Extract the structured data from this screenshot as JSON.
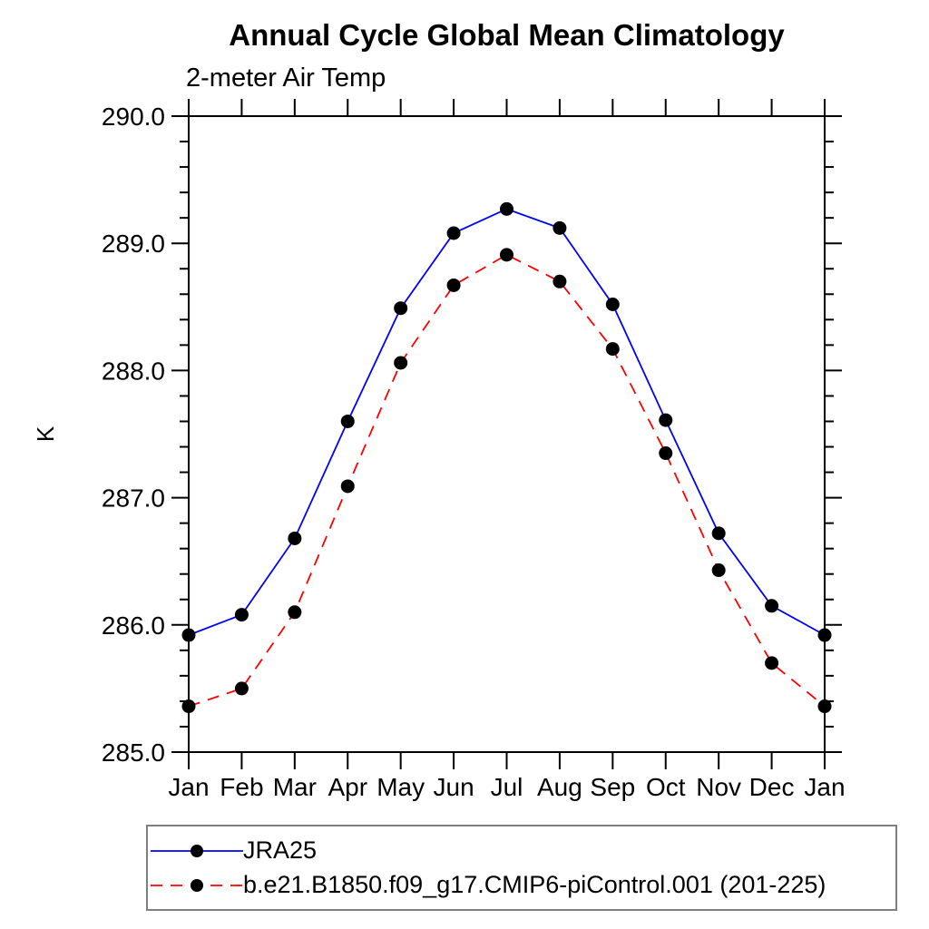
{
  "chart_data": {
    "type": "line",
    "title": "Annual Cycle Global Mean Climatology",
    "subtitle": "2-meter Air Temp",
    "ylabel": "K",
    "xlabel": "",
    "ylim": [
      285.0,
      290.0
    ],
    "ytick_interval": 1.0,
    "yminor_interval": 0.2,
    "ytick_labels": [
      "285.0",
      "286.0",
      "287.0",
      "288.0",
      "289.0",
      "290.0"
    ],
    "grid": false,
    "legend_position": "bottom-left",
    "categories": [
      "Jan",
      "Feb",
      "Mar",
      "Apr",
      "May",
      "Jun",
      "Jul",
      "Aug",
      "Sep",
      "Oct",
      "Nov",
      "Dec",
      "Jan"
    ],
    "marker": "filled-circle",
    "marker_color": "#000000",
    "axis_color": "#000000",
    "legend_border_color": "#7f7f7f",
    "series": [
      {
        "name": "JRA25",
        "color": "#0000ff",
        "style": "solid",
        "values": [
          285.92,
          286.08,
          286.68,
          287.6,
          288.49,
          289.08,
          289.27,
          289.12,
          288.52,
          287.61,
          286.72,
          286.15,
          285.92
        ]
      },
      {
        "name": "b.e21.B1850.f09_g17.CMIP6-piControl.001 (201-225)",
        "color": "#ff0000",
        "style": "dashed",
        "values": [
          285.36,
          285.5,
          286.1,
          287.09,
          288.06,
          288.67,
          288.91,
          288.7,
          288.17,
          287.35,
          286.43,
          285.7,
          285.36
        ]
      }
    ]
  }
}
